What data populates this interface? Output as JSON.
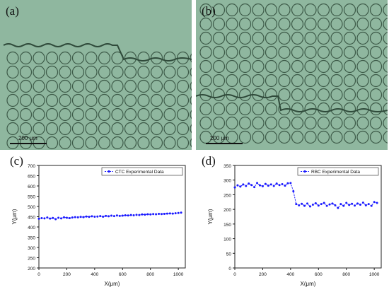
{
  "panels": {
    "a": {
      "label": "(a)",
      "scale_text": "200 μm"
    },
    "b": {
      "label": "(b)",
      "scale_text": "200 μm"
    },
    "c": {
      "label": "(c)"
    },
    "d": {
      "label": "(d)"
    }
  },
  "chart_data": [
    {
      "type": "line",
      "panel": "(c)",
      "xlabel": "X(μm)",
      "ylabel": "Y(μm)",
      "xlim": [
        0,
        1050
      ],
      "ylim": [
        200,
        700
      ],
      "xticks": [
        0,
        200,
        400,
        600,
        800,
        1000
      ],
      "yticks": [
        200,
        250,
        300,
        350,
        400,
        450,
        500,
        550,
        600,
        650,
        700
      ],
      "legend": "top-right",
      "series": [
        {
          "name": "CTC Experimental Data",
          "color": "#1a1aff",
          "x": [
            0,
            20,
            40,
            60,
            80,
            100,
            120,
            140,
            160,
            180,
            200,
            220,
            240,
            260,
            280,
            300,
            320,
            340,
            360,
            380,
            400,
            420,
            440,
            460,
            480,
            500,
            520,
            540,
            560,
            580,
            600,
            620,
            640,
            660,
            680,
            700,
            720,
            740,
            760,
            780,
            800,
            820,
            840,
            860,
            880,
            900,
            920,
            940,
            960,
            980,
            1000,
            1020
          ],
          "y": [
            440,
            443,
            442,
            446,
            441,
            444,
            438,
            445,
            442,
            447,
            445,
            443,
            446,
            448,
            447,
            449,
            448,
            451,
            449,
            452,
            450,
            451,
            453,
            450,
            454,
            452,
            455,
            453,
            456,
            454,
            455,
            457,
            456,
            458,
            457,
            459,
            458,
            461,
            460,
            462,
            461,
            463,
            462,
            464,
            463,
            464,
            465,
            466,
            465,
            467,
            468,
            470
          ]
        }
      ]
    },
    {
      "type": "line",
      "panel": "(d)",
      "xlabel": "X(μm)",
      "ylabel": "Y(μm)",
      "xlim": [
        0,
        1050
      ],
      "ylim": [
        0,
        350
      ],
      "xticks": [
        0,
        200,
        400,
        600,
        800,
        1000
      ],
      "yticks": [
        0,
        50,
        100,
        150,
        200,
        250,
        300,
        350
      ],
      "legend": "top-right",
      "series": [
        {
          "name": "RBC Experimental Data",
          "color": "#1a1aff",
          "x": [
            0,
            20,
            40,
            60,
            80,
            100,
            120,
            140,
            160,
            180,
            200,
            220,
            240,
            260,
            280,
            300,
            320,
            340,
            360,
            380,
            400,
            420,
            440,
            460,
            480,
            500,
            520,
            540,
            560,
            580,
            600,
            620,
            640,
            660,
            680,
            700,
            720,
            740,
            760,
            780,
            800,
            820,
            840,
            860,
            880,
            900,
            920,
            940,
            960,
            980,
            1000,
            1020
          ],
          "y": [
            275,
            282,
            278,
            285,
            280,
            288,
            283,
            276,
            290,
            282,
            279,
            287,
            281,
            285,
            280,
            288,
            283,
            286,
            281,
            289,
            290,
            262,
            218,
            214,
            219,
            212,
            220,
            210,
            216,
            221,
            213,
            218,
            222,
            212,
            217,
            220,
            214,
            205,
            218,
            212,
            222,
            215,
            219,
            213,
            220,
            216,
            223,
            214,
            218,
            212,
            225,
            222
          ]
        }
      ]
    }
  ]
}
